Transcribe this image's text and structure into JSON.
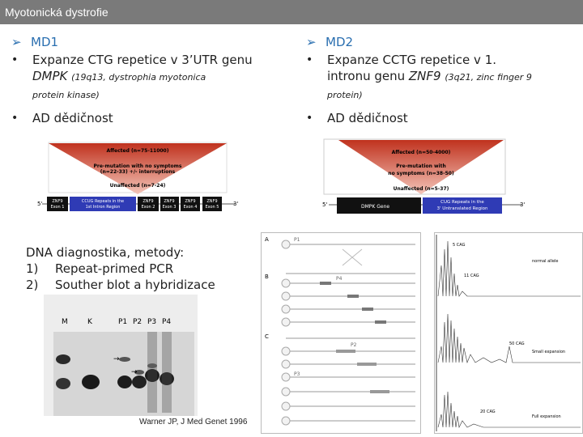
{
  "title": "Myotonická dystrofie",
  "left": {
    "heading": "MD1",
    "expansion": "Expanze CTG repetice v 3’UTR genu",
    "gene": "DMPK",
    "locus": "(19q13, dystrophia myotonica",
    "locus2": "protein kinase)",
    "inheritance": "AD dědičnost"
  },
  "right": {
    "heading": "MD2",
    "expansion": "Expanze CCTG repetice v 1.",
    "expansion2": "intronu genu",
    "gene": "ZNF9",
    "locus": "(3q21, zinc finger 9",
    "locus2": "protein)",
    "inheritance": "AD dědičnost"
  },
  "scheme_md2": {
    "affected": "Affected (n=75-11000)",
    "premutation": "Pre-mutation with no symptoms",
    "premutation2": "(n=22-33) +/- interruptions",
    "unaffected": "Unaffected (n=7-24)",
    "five": "5'",
    "three": "3'",
    "boxes": [
      "ZNF9 Exon 1",
      "CCUG Repeats in the 1st Intron Region",
      "ZNF9 Exon 2",
      "ZNF9 Exon 3",
      "ZNF9 Exon 4",
      "ZNF9 Exon 5"
    ]
  },
  "scheme_md1": {
    "affected": "Affected (n=50-4000)",
    "premutation": "Pre-mutation with",
    "premutation2": "no symptoms (n=38-50)",
    "unaffected": "Unaffected (n=5-37)",
    "five": "5'",
    "three": "3'",
    "gene_box": "DMPK Gene",
    "repeat_box": "CUG Repeats in the 3' Untranslated Region"
  },
  "diagnostics": {
    "heading": "DNA diagnostika, metody:",
    "items": [
      {
        "num": "1)",
        "text": "Repeat-primed PCR"
      },
      {
        "num": "2)",
        "text": "Souther blot a hybridizace"
      }
    ]
  },
  "gel": {
    "lanes": [
      "M",
      "K",
      "P1",
      "P2",
      "P3",
      "P4"
    ]
  },
  "citation": "Warner JP, J Med Genet 1996",
  "rp_panel": {
    "labels": [
      "A",
      "B",
      "C"
    ],
    "primers": [
      "P1",
      "P2",
      "P3",
      "P4"
    ]
  },
  "trace_panel": {
    "labels": [
      "5 CAG",
      "11 CAG",
      "normal allele",
      "50 CAG",
      "Small expansion",
      "Full expansion",
      "20 CAG"
    ]
  }
}
